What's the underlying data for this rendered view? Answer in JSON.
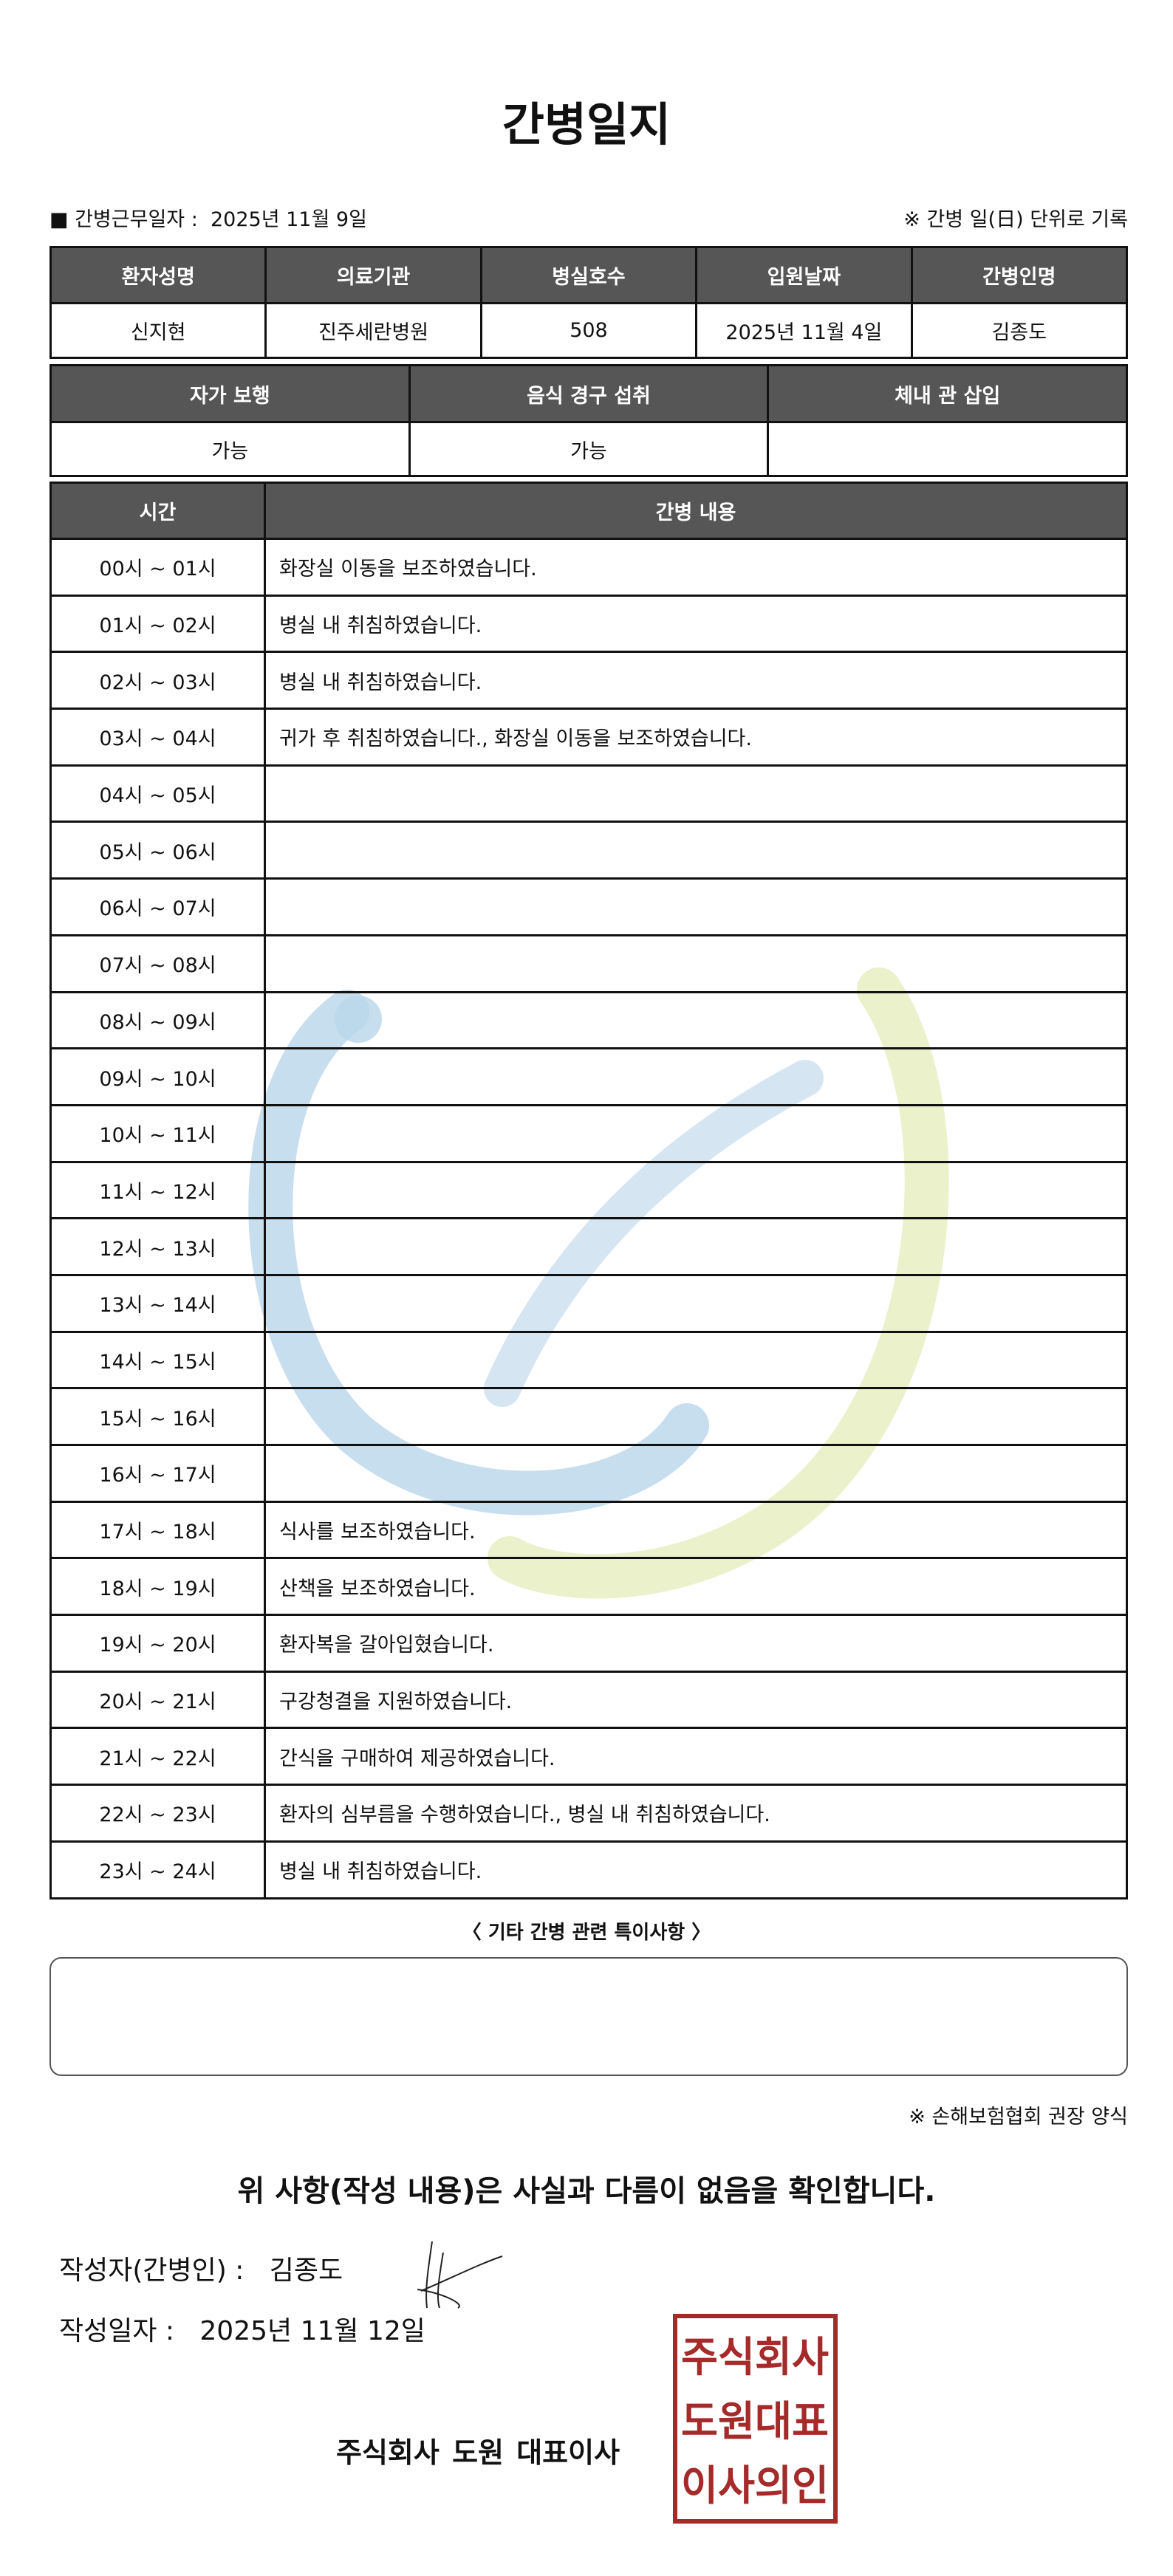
{
  "title": "간병일지",
  "info": {
    "work_date_label": "■ 간병근무일자 :",
    "work_date": "2025년 11월 9일",
    "note": "※ 간병 일(日) 단위로 기록"
  },
  "patient": {
    "headers": [
      "환자성명",
      "의료기관",
      "병실호수",
      "입원날짜",
      "간병인명"
    ],
    "values": [
      "신지현",
      "진주세란병원",
      "508",
      "2025년 11월 4일",
      "김종도"
    ]
  },
  "status": {
    "headers": [
      "자가 보행",
      "음식 경구 섭취",
      "체내 관 삽입"
    ],
    "values": [
      "가능",
      "가능",
      ""
    ]
  },
  "log": {
    "headers": [
      "시간",
      "간병 내용"
    ],
    "rows": [
      [
        "00시 ~ 01시",
        "화장실 이동을 보조하였습니다."
      ],
      [
        "01시 ~ 02시",
        "병실 내 취침하였습니다."
      ],
      [
        "02시 ~ 03시",
        "병실 내 취침하였습니다."
      ],
      [
        "03시 ~ 04시",
        "귀가 후 취침하였습니다., 화장실 이동을 보조하였습니다."
      ],
      [
        "04시 ~ 05시",
        ""
      ],
      [
        "05시 ~ 06시",
        ""
      ],
      [
        "06시 ~ 07시",
        ""
      ],
      [
        "07시 ~ 08시",
        ""
      ],
      [
        "08시 ~ 09시",
        ""
      ],
      [
        "09시 ~ 10시",
        ""
      ],
      [
        "10시 ~ 11시",
        ""
      ],
      [
        "11시 ~ 12시",
        ""
      ],
      [
        "12시 ~ 13시",
        ""
      ],
      [
        "13시 ~ 14시",
        ""
      ],
      [
        "14시 ~ 15시",
        ""
      ],
      [
        "15시 ~ 16시",
        ""
      ],
      [
        "16시 ~ 17시",
        ""
      ],
      [
        "17시 ~ 18시",
        "식사를 보조하였습니다."
      ],
      [
        "18시 ~ 19시",
        "산책을 보조하였습니다."
      ],
      [
        "19시 ~ 20시",
        "환자복을 갈아입혔습니다."
      ],
      [
        "20시 ~ 21시",
        "구강청결을 지원하였습니다."
      ],
      [
        "21시 ~ 22시",
        "간식을 구매하여 제공하였습니다."
      ],
      [
        "22시 ~ 23시",
        "환자의 심부름을 수행하였습니다., 병실 내 취침하였습니다."
      ],
      [
        "23시 ~ 24시",
        "병실 내 취침하였습니다."
      ]
    ]
  },
  "notes": {
    "title": "〈 기타 간병 관련 특이사항 〉",
    "content": ""
  },
  "form_note": "※ 손해보험협회 권장 양식",
  "confirm": "위 사항(작성 내용)은 사실과 다름이 없음을 확인합니다.",
  "signature": {
    "writer_label": "작성자(간병인) :",
    "writer": "김종도",
    "date_label": "작성일자 :",
    "date": "2025년 11월 12일"
  },
  "company": "주식회사 도원  대표이사",
  "stamp_text": "주식회사도원대표이사의인",
  "colors": {
    "header_bg": "#565656",
    "stamp": "#a52a2a",
    "watermark_blue": "#b9d6ea",
    "watermark_green": "#e6efc2"
  }
}
